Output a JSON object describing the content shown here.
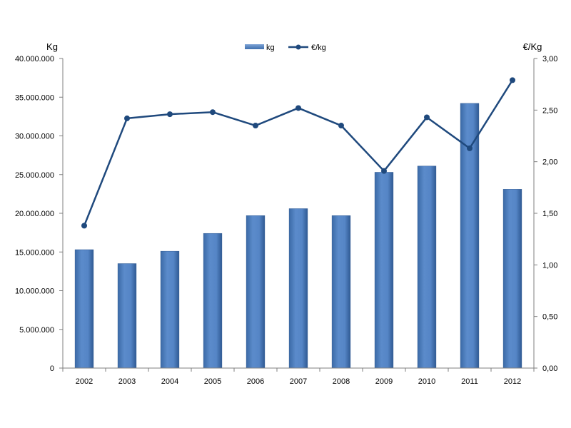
{
  "chart_data": {
    "type": "bar",
    "categories": [
      "2002",
      "2003",
      "2004",
      "2005",
      "2006",
      "2007",
      "2008",
      "2009",
      "2010",
      "2011",
      "2012"
    ],
    "series": [
      {
        "name": "kg",
        "type": "bar",
        "axis": "left",
        "values": [
          15300000,
          13500000,
          15100000,
          17400000,
          19700000,
          20600000,
          19700000,
          25300000,
          26100000,
          34200000,
          23100000
        ]
      },
      {
        "name": "€/kg",
        "type": "line",
        "axis": "right",
        "values": [
          1.38,
          2.42,
          2.46,
          2.48,
          2.35,
          2.52,
          2.35,
          1.91,
          2.43,
          2.13,
          2.79
        ]
      }
    ],
    "left_axis": {
      "label": "Kg",
      "ylim": [
        0,
        40000000
      ],
      "ticks": [
        "0",
        "5.000.000",
        "10.000.000",
        "15.000.000",
        "20.000.000",
        "25.000.000",
        "30.000.000",
        "35.000.000",
        "40.000.000"
      ]
    },
    "right_axis": {
      "label": "€/Kg",
      "ylim": [
        0,
        3
      ],
      "ticks": [
        "0,00",
        "0,50",
        "1,00",
        "1,50",
        "2,00",
        "2,50",
        "3,00"
      ]
    },
    "legend_position": "top-center",
    "grid": false,
    "colors": {
      "bar": "#4f81bd",
      "line": "#1f497d",
      "axis": "#7f7f7f"
    }
  }
}
